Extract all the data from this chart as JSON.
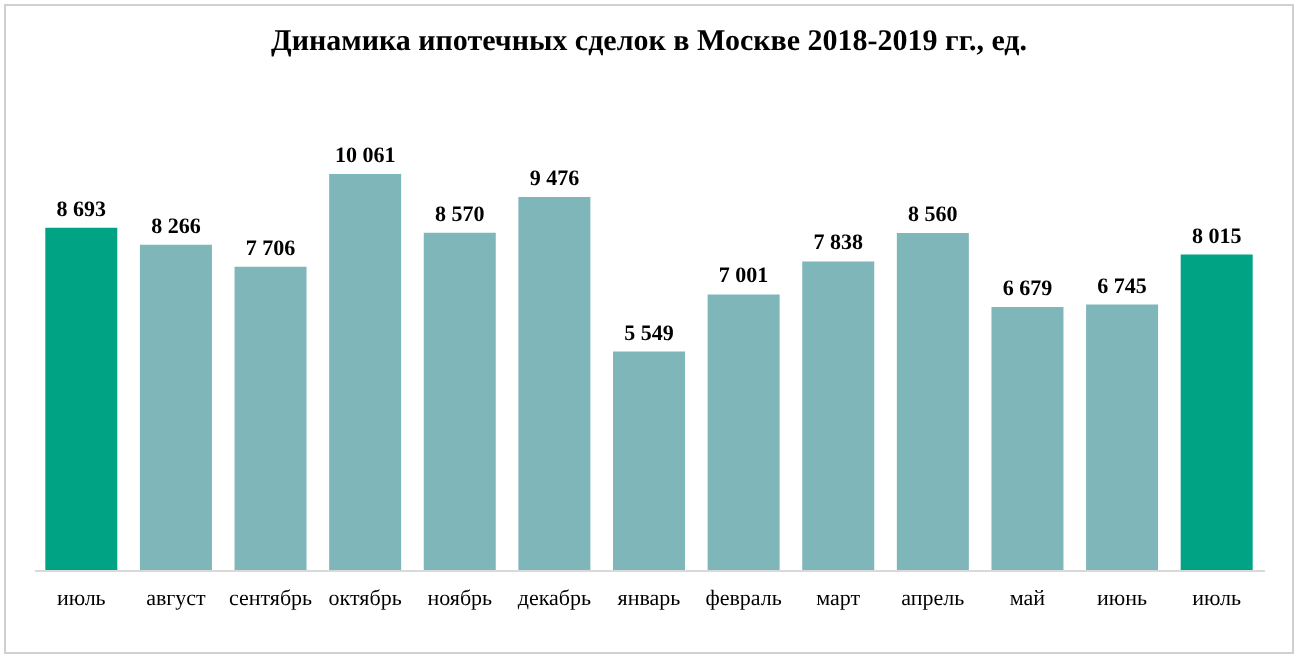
{
  "chart_data": {
    "type": "bar",
    "title": "Динамика ипотечных сделок в Москве 2018-2019 гг., ед.",
    "categories": [
      "июль",
      "август",
      "сентябрь",
      "октябрь",
      "ноябрь",
      "декабрь",
      "январь",
      "февраль",
      "март",
      "апрель",
      "май",
      "июнь",
      "июль"
    ],
    "values": [
      8693,
      8266,
      7706,
      10061,
      8570,
      9476,
      5549,
      7001,
      7838,
      8560,
      6679,
      6745,
      8015
    ],
    "colors": [
      "#00a383",
      "#7fb6b9",
      "#7fb6b9",
      "#7fb6b9",
      "#7fb6b9",
      "#7fb6b9",
      "#7fb6b9",
      "#7fb6b9",
      "#7fb6b9",
      "#7fb6b9",
      "#7fb6b9",
      "#7fb6b9",
      "#00a383"
    ],
    "data_labels": true
  }
}
